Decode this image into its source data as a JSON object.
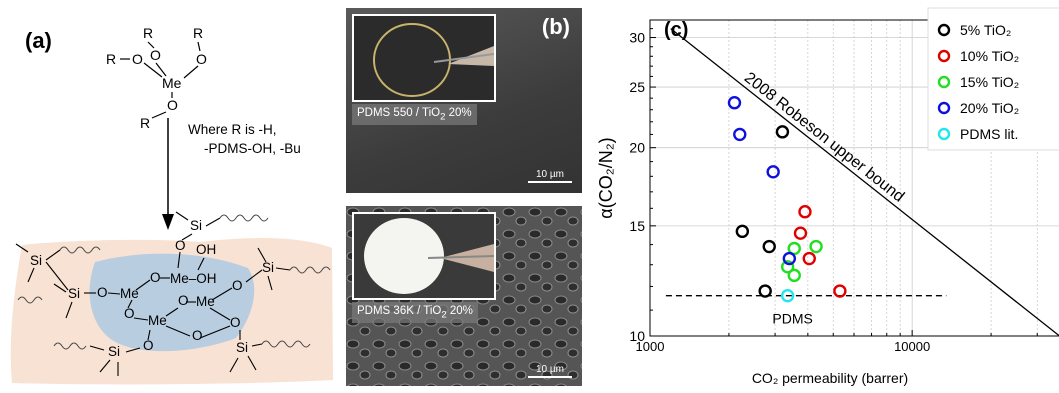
{
  "panel_a": {
    "label": "(a)",
    "r_groups": [
      "R",
      "R",
      "R",
      "R"
    ],
    "me_center": "Me",
    "oxygen": "O",
    "where_line1": "Where R is -H,",
    "where_line2": "-PDMS-OH, -Bu",
    "si": "Si",
    "me": "Me",
    "o": "O",
    "oh": "OH",
    "me_oh": "Me–OH"
  },
  "panel_b": {
    "label": "(b)",
    "top_caption": "PDMS 550 / TiO",
    "top_caption_sub": "2",
    "top_caption_tail": " 20%",
    "bottom_caption": "PDMS 36K / TiO",
    "bottom_caption_sub": "2",
    "bottom_caption_tail": " 20%",
    "scale_label": "10 µm"
  },
  "panel_c": {
    "label": "(c)",
    "colors": {
      "c5": "#000000",
      "c10": "#e00000",
      "c15": "#22dd22",
      "c20": "#1010dd",
      "lit": "#22e6ee"
    },
    "pdms_label": "PDMS",
    "robeson_label": "2008 Robeson upper bound"
  },
  "chart_data": {
    "type": "scatter",
    "xlabel": "CO₂ permeability (barrer)",
    "ylabel": "α(CO₂/N₂)",
    "xscale": "log",
    "yscale": "log",
    "xlim": [
      1000,
      40000
    ],
    "ylim": [
      10,
      32
    ],
    "xticks": [
      "1000",
      "10000"
    ],
    "yticks": [
      "10",
      "15",
      "20",
      "25",
      "30"
    ],
    "grid": true,
    "legend_position": "top-right",
    "series": [
      {
        "name": "5% TiO₂",
        "color": "#000000",
        "points": [
          [
            2250,
            14.7
          ],
          [
            3200,
            21.2
          ],
          [
            2850,
            13.9
          ],
          [
            2750,
            11.8
          ]
        ]
      },
      {
        "name": "10% TiO₂",
        "color": "#e00000",
        "points": [
          [
            3900,
            15.8
          ],
          [
            3750,
            14.6
          ],
          [
            4050,
            13.3
          ],
          [
            5300,
            11.8
          ]
        ]
      },
      {
        "name": "15% TiO₂",
        "color": "#22dd22",
        "points": [
          [
            3550,
            13.8
          ],
          [
            4300,
            13.9
          ],
          [
            3350,
            12.9
          ],
          [
            3550,
            12.5
          ]
        ]
      },
      {
        "name": "20% TiO₂",
        "color": "#1010dd",
        "points": [
          [
            2100,
            23.6
          ],
          [
            2200,
            21.0
          ],
          [
            2950,
            18.3
          ],
          [
            3400,
            13.3
          ]
        ]
      },
      {
        "name": "PDMS lit.",
        "color": "#22e6ee",
        "points": [
          [
            3350,
            11.6
          ]
        ]
      }
    ],
    "reference_lines": [
      {
        "name": "2008 Robeson upper bound",
        "from": [
          1200,
          31
        ],
        "to": [
          40000,
          9.7
        ]
      },
      {
        "name": "PDMS",
        "y": 11.6,
        "x_range": [
          1150,
          13500
        ],
        "style": "dashed"
      }
    ]
  }
}
